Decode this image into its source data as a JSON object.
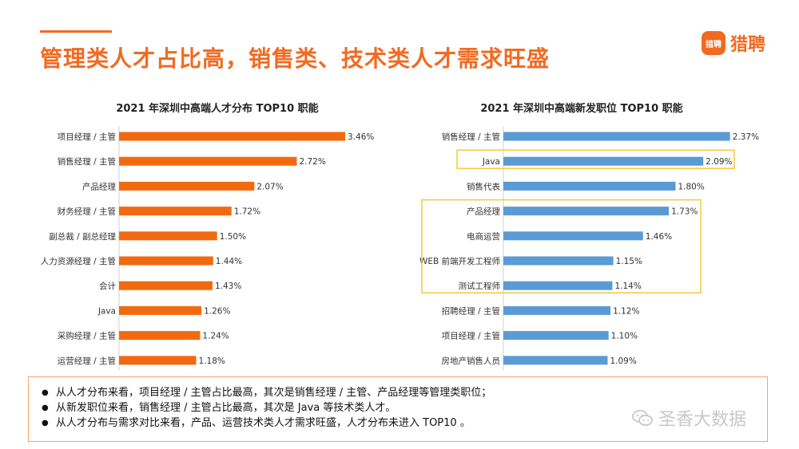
{
  "header": {
    "title": "管理类人才占比高，销售类、技术类人才需求旺盛"
  },
  "logo": {
    "icon_text": "猎聘",
    "text": "猎聘"
  },
  "chart_data": [
    {
      "type": "bar",
      "orientation": "horizontal",
      "title": "2021 年深圳中高端人才分布 TOP10 职能",
      "categories": [
        "项目经理 / 主管",
        "销售经理 / 主管",
        "产品经理",
        "财务经理 / 主管",
        "副总裁 / 副总经理",
        "人力资源经理 / 主管",
        "会计",
        "Java",
        "采购经理 / 主管",
        "运营经理 / 主管"
      ],
      "values": [
        3.46,
        2.72,
        2.07,
        1.72,
        1.5,
        1.44,
        1.43,
        1.26,
        1.24,
        1.18
      ],
      "value_labels": [
        "3.46%",
        "2.72%",
        "2.07%",
        "1.72%",
        "1.50%",
        "1.44%",
        "1.43%",
        "1.26%",
        "1.24%",
        "1.18%"
      ],
      "color": "#f26a10"
    },
    {
      "type": "bar",
      "orientation": "horizontal",
      "title": "2021 年深圳中高端新发职位 TOP10 职能",
      "categories": [
        "销售经理 / 主管",
        "Java",
        "销售代表",
        "产品经理",
        "电商运营",
        "WEB 前端开发工程师",
        "测试工程师",
        "招聘经理 / 主管",
        "项目经理 / 主管",
        "房地产销售人员"
      ],
      "values": [
        2.37,
        2.09,
        1.8,
        1.73,
        1.46,
        1.15,
        1.14,
        1.12,
        1.1,
        1.09
      ],
      "value_labels": [
        "2.37%",
        "2.09%",
        "1.80%",
        "1.73%",
        "1.46%",
        "1.15%",
        "1.14%",
        "1.12%",
        "1.10%",
        "1.09%"
      ],
      "color": "#5b9bd5",
      "highlight_groups": [
        [
          1
        ],
        [
          3,
          4,
          5,
          6
        ]
      ],
      "highlight_color": "#f5cc4a"
    }
  ],
  "summary": {
    "bullets": [
      "从人才分布来看，项目经理 / 主管占比最高，其次是销售经理 / 主管、产品经理等管理类职位；",
      "从新发职位来看，销售经理 / 主管占比最高，其次是 Java 等技术类人才。",
      "从人才分布与需求对比来看，产品、运营技术类人才需求旺盛，人才分布未进入 TOP10 。"
    ]
  },
  "watermark": {
    "text": "圣香大数据",
    "icon": "wechat-icon"
  }
}
